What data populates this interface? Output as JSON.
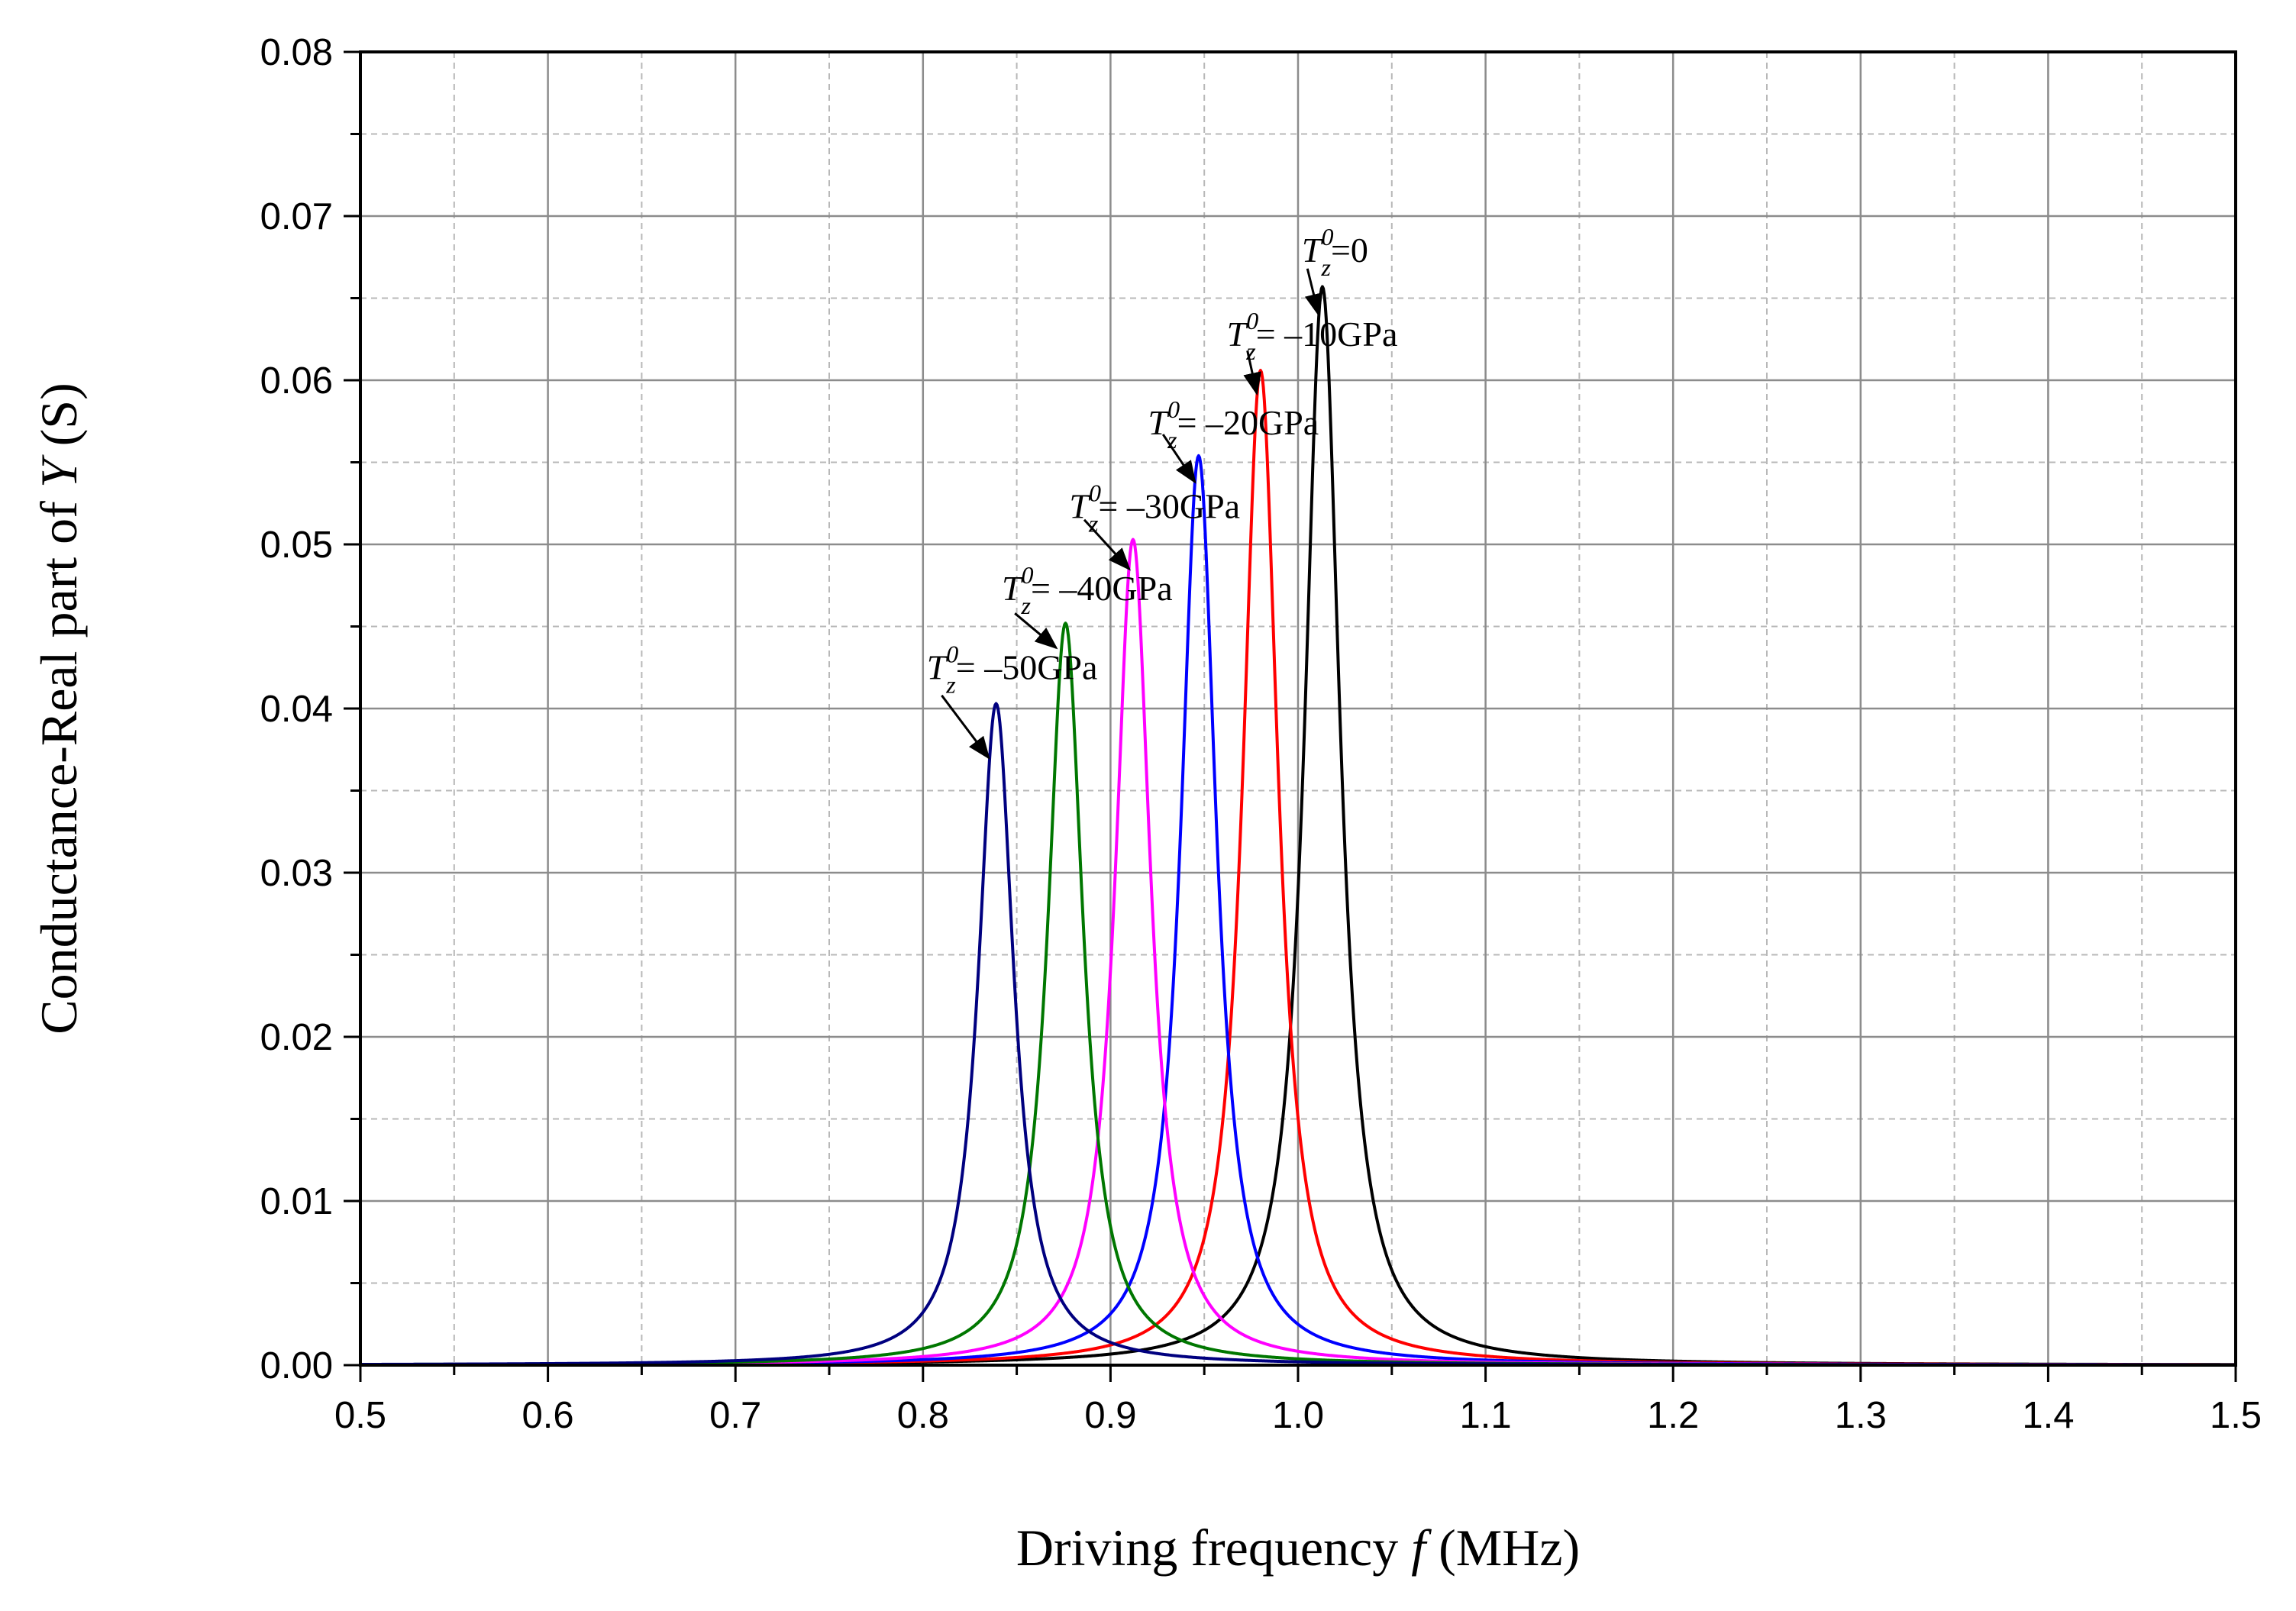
{
  "chart_data": {
    "type": "line",
    "xlabel_prefix": "Driving frequency ",
    "xlabel_var": "f",
    "xlabel_unit": " (MHz)",
    "ylabel_prefix": "Conductance-Real part of ",
    "ylabel_var": "Y",
    "ylabel_unit": " (S)",
    "xlim": [
      0.5,
      1.5
    ],
    "ylim": [
      0,
      0.08
    ],
    "x_ticks": [
      "0.5",
      "0.6",
      "0.7",
      "0.8",
      "0.9",
      "1.0",
      "1.1",
      "1.2",
      "1.3",
      "1.4",
      "1.5"
    ],
    "y_ticks": [
      "0.00",
      "0.01",
      "0.02",
      "0.03",
      "0.04",
      "0.05",
      "0.06",
      "0.07",
      "0.08"
    ],
    "grid": true,
    "series": [
      {
        "name": "T_z^0=0",
        "color": "#000000",
        "peak_x": 1.013,
        "peak_y": 0.0657,
        "half_width": 0.0115
      },
      {
        "name": "T_z^0=-10GPa",
        "color": "#ff0000",
        "peak_x": 0.98,
        "peak_y": 0.0606,
        "half_width": 0.0115
      },
      {
        "name": "T_z^0=-20GPa",
        "color": "#0000ff",
        "peak_x": 0.947,
        "peak_y": 0.0554,
        "half_width": 0.0115
      },
      {
        "name": "T_z^0=-30GPa",
        "color": "#ff00ff",
        "peak_x": 0.912,
        "peak_y": 0.0503,
        "half_width": 0.0115
      },
      {
        "name": "T_z^0=-40GPa",
        "color": "#007700",
        "peak_x": 0.876,
        "peak_y": 0.0452,
        "half_width": 0.0115
      },
      {
        "name": "T_z^0=-50GPa",
        "color": "#00007f",
        "peak_x": 0.839,
        "peak_y": 0.0403,
        "half_width": 0.0115
      }
    ],
    "annotations": [
      {
        "series": 0,
        "prefix": "T",
        "sup": "0",
        "sub": "z",
        "value": "=0",
        "text_x": 1.002,
        "text_y": 0.0672,
        "arrow_from": [
          1.005,
          0.0668
        ],
        "arrow_to": [
          1.011,
          0.064
        ]
      },
      {
        "series": 1,
        "prefix": "T",
        "sup": "0",
        "sub": "z",
        "value": "= –10GPa",
        "text_x": 0.962,
        "text_y": 0.0621,
        "arrow_from": [
          0.973,
          0.0618
        ],
        "arrow_to": [
          0.978,
          0.0592
        ]
      },
      {
        "series": 2,
        "prefix": "T",
        "sup": "0",
        "sub": "z",
        "value": "= –20GPa",
        "text_x": 0.92,
        "text_y": 0.0567,
        "arrow_from": [
          0.928,
          0.0567
        ],
        "arrow_to": [
          0.945,
          0.0538
        ]
      },
      {
        "series": 3,
        "prefix": "T",
        "sup": "0",
        "sub": "z",
        "value": "= –30GPa",
        "text_x": 0.878,
        "text_y": 0.0516,
        "arrow_from": [
          0.886,
          0.0515
        ],
        "arrow_to": [
          0.91,
          0.0485
        ]
      },
      {
        "series": 4,
        "prefix": "T",
        "sup": "0",
        "sub": "z",
        "value": "= –40GPa",
        "text_x": 0.842,
        "text_y": 0.0466,
        "arrow_from": [
          0.849,
          0.0458
        ],
        "arrow_to": [
          0.871,
          0.0437
        ]
      },
      {
        "series": 5,
        "prefix": "T",
        "sup": "0",
        "sub": "z",
        "value": "= –50GPa",
        "text_x": 0.802,
        "text_y": 0.0418,
        "arrow_from": [
          0.81,
          0.0408
        ],
        "arrow_to": [
          0.835,
          0.037
        ]
      }
    ]
  }
}
